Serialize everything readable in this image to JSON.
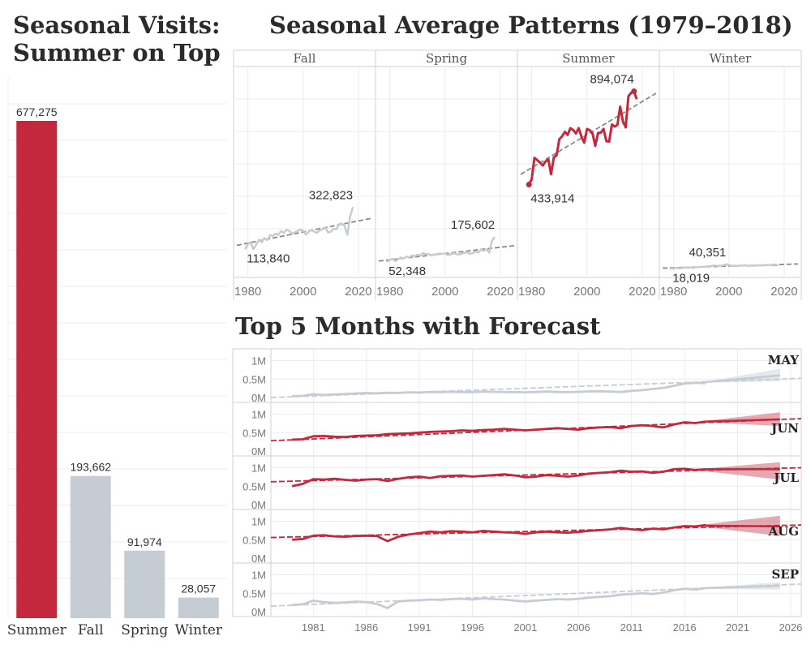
{
  "titles": {
    "left": [
      "Seasonal Visits:",
      "Summer on Top"
    ],
    "seasonal": "Seasonal Average Patterns (1979–2018)",
    "forecast": "Top 5 Months with Forecast"
  },
  "colors": {
    "highlight": "#c3283c",
    "muted": "#c5ccd4",
    "trend": "#8a8a8a",
    "grid": "#ececec"
  },
  "chart_data": [
    {
      "type": "bar",
      "title": "Seasonal Visits: Summer on Top",
      "categories": [
        "Summer",
        "Fall",
        "Spring",
        "Winter"
      ],
      "values": [
        677275,
        193662,
        91974,
        28057
      ],
      "value_labels": [
        "677,275",
        "193,662",
        "91,974",
        "28,057"
      ],
      "highlight": [
        "Summer"
      ],
      "ylim": [
        0,
        700000
      ]
    },
    {
      "type": "line",
      "title": "Seasonal Average Patterns (1979–2018)",
      "panels": [
        "Fall",
        "Spring",
        "Summer",
        "Winter"
      ],
      "x_ticks": [
        "1980",
        "2000",
        "2020"
      ],
      "xlim": [
        1976,
        2025
      ],
      "ylim": [
        0,
        1000000
      ],
      "trendline": true,
      "series": [
        {
          "panel": "Fall",
          "start_label": "113,840",
          "end_label": "322,823",
          "x": [
            1979,
            1980,
            1981,
            1982,
            1983,
            1984,
            1985,
            1986,
            1987,
            1988,
            1989,
            1990,
            1991,
            1992,
            1993,
            1994,
            1995,
            1996,
            1997,
            1998,
            1999,
            2000,
            2001,
            2002,
            2003,
            2004,
            2005,
            2006,
            2007,
            2008,
            2009,
            2010,
            2011,
            2012,
            2013,
            2014,
            2015,
            2016,
            2017,
            2018
          ],
          "values": [
            113840,
            140000,
            150000,
            115000,
            138000,
            162000,
            150000,
            170000,
            160000,
            185000,
            180000,
            192000,
            186000,
            205000,
            195000,
            212000,
            205000,
            192000,
            198000,
            205000,
            212000,
            206000,
            188000,
            201000,
            210000,
            202000,
            196000,
            208000,
            214000,
            222000,
            198000,
            201000,
            216000,
            214000,
            238000,
            242000,
            229000,
            186000,
            276000,
            322823
          ]
        },
        {
          "panel": "Spring",
          "start_label": "52,348",
          "end_label": "175,602",
          "x": [
            1979,
            1980,
            1981,
            1982,
            1983,
            1984,
            1985,
            1986,
            1987,
            1988,
            1989,
            1990,
            1991,
            1992,
            1993,
            1994,
            1995,
            1996,
            1997,
            1998,
            1999,
            2000,
            2001,
            2002,
            2003,
            2004,
            2005,
            2006,
            2007,
            2008,
            2009,
            2010,
            2011,
            2012,
            2013,
            2014,
            2015,
            2016,
            2017,
            2018
          ],
          "values": [
            52348,
            62000,
            68000,
            56000,
            66000,
            74000,
            70000,
            79000,
            75000,
            84000,
            80000,
            88000,
            84000,
            96000,
            90000,
            92000,
            85000,
            88000,
            91000,
            94000,
            92000,
            95000,
            86000,
            90000,
            95000,
            92000,
            89000,
            94000,
            97000,
            101000,
            93000,
            96000,
            103000,
            100000,
            112000,
            108000,
            114000,
            98000,
            158000,
            175602
          ]
        },
        {
          "panel": "Summer",
          "start_label": "433,914",
          "end_label": "894,074",
          "highlight": true,
          "x": [
            1979,
            1980,
            1981,
            1982,
            1983,
            1984,
            1985,
            1986,
            1987,
            1988,
            1989,
            1990,
            1991,
            1992,
            1993,
            1994,
            1995,
            1996,
            1997,
            1998,
            1999,
            2000,
            2001,
            2002,
            2003,
            2004,
            2005,
            2006,
            2007,
            2008,
            2009,
            2010,
            2011,
            2012,
            2013,
            2014,
            2015,
            2016,
            2017,
            2018
          ],
          "values": [
            433914,
            460000,
            566000,
            555000,
            542000,
            528000,
            548000,
            559000,
            485000,
            568000,
            578000,
            658000,
            672000,
            694000,
            679000,
            712000,
            703000,
            686000,
            712000,
            670000,
            640000,
            708000,
            702000,
            686000,
            625000,
            688000,
            690000,
            708000,
            648000,
            646000,
            730000,
            720000,
            728000,
            818000,
            745000,
            716000,
            870000,
            887000,
            894074,
            855000
          ]
        },
        {
          "panel": "Winter",
          "start_label": "18,019",
          "end_label": "40,351",
          "x": [
            1979,
            1980,
            1981,
            1982,
            1983,
            1984,
            1985,
            1986,
            1987,
            1988,
            1989,
            1990,
            1991,
            1992,
            1993,
            1994,
            1995,
            1996,
            1997,
            1998,
            1999,
            2000,
            2001,
            2002,
            2003,
            2004,
            2005,
            2006,
            2007,
            2008,
            2009,
            2010,
            2011,
            2012,
            2013,
            2014,
            2015,
            2016,
            2017,
            2018
          ],
          "values": [
            18019,
            20000,
            24000,
            21000,
            22000,
            26000,
            24000,
            25000,
            23000,
            26000,
            27000,
            29000,
            28000,
            31000,
            30000,
            34000,
            35000,
            33000,
            34000,
            36000,
            40351,
            38000,
            33000,
            34000,
            32000,
            35000,
            34000,
            36000,
            33000,
            35000,
            34000,
            35000,
            36000,
            35000,
            37000,
            36000,
            38000,
            35000,
            36000,
            37000
          ]
        }
      ]
    },
    {
      "type": "line",
      "title": "Top 5 Months with Forecast",
      "x_ticks": [
        "1981",
        "1986",
        "1991",
        "1996",
        "2001",
        "2006",
        "2011",
        "2016",
        "2021",
        "2026"
      ],
      "xlim": [
        1977,
        2027
      ],
      "y_ticks": [
        "1M",
        "0.5M",
        "0M"
      ],
      "ylim": [
        0,
        1100000
      ],
      "forecast_start": 2018,
      "forecast_end": 2025,
      "series": [
        {
          "name": "MAY",
          "highlight": false,
          "x": [
            1979,
            1980,
            1981,
            1982,
            1983,
            1984,
            1985,
            1986,
            1987,
            1988,
            1989,
            1990,
            1991,
            1992,
            1993,
            1994,
            1995,
            1996,
            1997,
            1998,
            1999,
            2000,
            2001,
            2002,
            2003,
            2004,
            2005,
            2006,
            2007,
            2008,
            2009,
            2010,
            2011,
            2012,
            2013,
            2014,
            2015,
            2016,
            2017,
            2018
          ],
          "values": [
            40000,
            45000,
            90000,
            70000,
            85000,
            95000,
            110000,
            120000,
            115000,
            130000,
            125000,
            140000,
            135000,
            150000,
            145000,
            155000,
            150000,
            145000,
            160000,
            155000,
            150000,
            145000,
            140000,
            150000,
            160000,
            150000,
            145000,
            155000,
            165000,
            170000,
            160000,
            150000,
            180000,
            200000,
            230000,
            260000,
            320000,
            380000,
            400000,
            390000
          ],
          "trend": [
            0,
            520000
          ],
          "forecast": {
            "mid": [
              420000,
              600000
            ],
            "lo": [
              400000,
              440000
            ],
            "hi": [
              430000,
              780000
            ]
          }
        },
        {
          "name": "JUN",
          "highlight": true,
          "x": [
            1979,
            1980,
            1981,
            1982,
            1983,
            1984,
            1985,
            1986,
            1987,
            1988,
            1989,
            1990,
            1991,
            1992,
            1993,
            1994,
            1995,
            1996,
            1997,
            1998,
            1999,
            2000,
            2001,
            2002,
            2003,
            2004,
            2005,
            2006,
            2007,
            2008,
            2009,
            2010,
            2011,
            2012,
            2013,
            2014,
            2015,
            2016,
            2017,
            2018
          ],
          "values": [
            310000,
            320000,
            400000,
            410000,
            390000,
            380000,
            410000,
            420000,
            430000,
            460000,
            470000,
            480000,
            500000,
            520000,
            530000,
            540000,
            560000,
            550000,
            570000,
            580000,
            600000,
            580000,
            560000,
            580000,
            600000,
            620000,
            600000,
            580000,
            620000,
            640000,
            650000,
            620000,
            680000,
            700000,
            680000,
            640000,
            720000,
            780000,
            760000,
            800000
          ],
          "trend": [
            280000,
            880000
          ],
          "forecast": {
            "mid": [
              800000,
              860000
            ],
            "lo": [
              780000,
              680000
            ],
            "hi": [
              820000,
              1050000
            ]
          }
        },
        {
          "name": "JUL",
          "highlight": true,
          "x": [
            1979,
            1980,
            1981,
            1982,
            1983,
            1984,
            1985,
            1986,
            1987,
            1988,
            1989,
            1990,
            1991,
            1992,
            1993,
            1994,
            1995,
            1996,
            1997,
            1998,
            1999,
            2000,
            2001,
            2002,
            2003,
            2004,
            2005,
            2006,
            2007,
            2008,
            2009,
            2010,
            2011,
            2012,
            2013,
            2014,
            2015,
            2016,
            2017,
            2018
          ],
          "values": [
            500000,
            560000,
            690000,
            680000,
            700000,
            670000,
            650000,
            680000,
            690000,
            640000,
            700000,
            740000,
            760000,
            720000,
            770000,
            780000,
            790000,
            760000,
            780000,
            800000,
            820000,
            790000,
            740000,
            760000,
            800000,
            780000,
            760000,
            790000,
            840000,
            860000,
            880000,
            920000,
            890000,
            900000,
            860000,
            890000,
            960000,
            970000,
            940000,
            960000
          ],
          "trend": [
            620000,
            1000000
          ],
          "forecast": {
            "mid": [
              960000,
              960000
            ],
            "lo": [
              900000,
              680000
            ],
            "hi": [
              980000,
              1150000
            ]
          }
        },
        {
          "name": "AUG",
          "highlight": true,
          "x": [
            1979,
            1980,
            1981,
            1982,
            1983,
            1984,
            1985,
            1986,
            1987,
            1988,
            1989,
            1990,
            1991,
            1992,
            1993,
            1994,
            1995,
            1996,
            1997,
            1998,
            1999,
            2000,
            2001,
            2002,
            2003,
            2004,
            2005,
            2006,
            2007,
            2008,
            2009,
            2010,
            2011,
            2012,
            2013,
            2014,
            2015,
            2016,
            2017,
            2018
          ],
          "values": [
            500000,
            520000,
            610000,
            620000,
            590000,
            580000,
            600000,
            610000,
            600000,
            460000,
            580000,
            640000,
            680000,
            720000,
            700000,
            730000,
            720000,
            700000,
            740000,
            720000,
            700000,
            690000,
            660000,
            700000,
            720000,
            700000,
            690000,
            710000,
            740000,
            760000,
            780000,
            820000,
            780000,
            760000,
            800000,
            780000,
            830000,
            870000,
            860000,
            900000
          ],
          "trend": [
            560000,
            900000
          ],
          "forecast": {
            "mid": [
              880000,
              860000
            ],
            "lo": [
              840000,
              600000
            ],
            "hi": [
              920000,
              1150000
            ]
          }
        },
        {
          "name": "SEP",
          "highlight": false,
          "x": [
            1979,
            1980,
            1981,
            1982,
            1983,
            1984,
            1985,
            1986,
            1987,
            1988,
            1989,
            1990,
            1991,
            1992,
            1993,
            1994,
            1995,
            1996,
            1997,
            1998,
            1999,
            2000,
            2001,
            2002,
            2003,
            2004,
            2005,
            2006,
            2007,
            2008,
            2009,
            2010,
            2011,
            2012,
            2013,
            2014,
            2015,
            2016,
            2017,
            2018
          ],
          "values": [
            180000,
            200000,
            300000,
            260000,
            240000,
            250000,
            270000,
            260000,
            210000,
            100000,
            280000,
            300000,
            310000,
            330000,
            320000,
            340000,
            350000,
            330000,
            360000,
            340000,
            330000,
            300000,
            280000,
            300000,
            320000,
            340000,
            330000,
            350000,
            380000,
            400000,
            420000,
            460000,
            480000,
            500000,
            480000,
            520000,
            580000,
            620000,
            600000,
            640000
          ],
          "trend": [
            150000,
            750000
          ],
          "forecast": {
            "mid": [
              640000,
              700000
            ],
            "lo": [
              620000,
              600000
            ],
            "hi": [
              660000,
              800000
            ]
          }
        }
      ]
    }
  ]
}
